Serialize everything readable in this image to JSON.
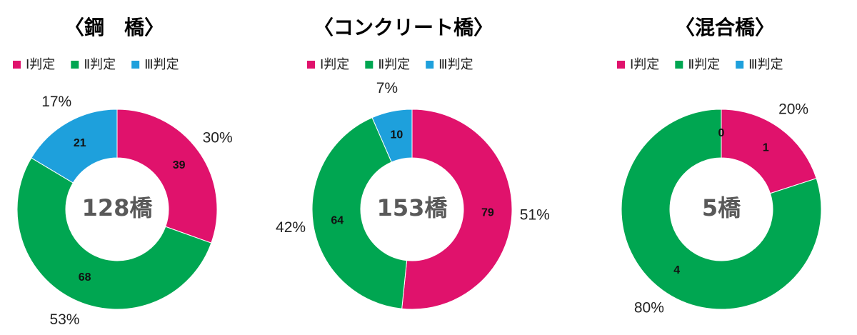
{
  "chart_data": [
    {
      "type": "donut",
      "title": "〈鋼　橋〉",
      "center_label": "128橋",
      "categories": [
        "Ⅰ判定",
        "Ⅱ判定",
        "Ⅲ判定"
      ],
      "colors": [
        "#e0126c",
        "#00a651",
        "#1ea0dc"
      ],
      "values": [
        39,
        68,
        21
      ],
      "percent_labels": [
        "30%",
        "53%",
        "17%"
      ]
    },
    {
      "type": "donut",
      "title": "〈コンクリート橋〉",
      "center_label": "153橋",
      "categories": [
        "Ⅰ判定",
        "Ⅱ判定",
        "Ⅲ判定"
      ],
      "colors": [
        "#e0126c",
        "#00a651",
        "#1ea0dc"
      ],
      "values": [
        79,
        64,
        10
      ],
      "percent_labels": [
        "51%",
        "42%",
        "7%"
      ]
    },
    {
      "type": "donut",
      "title": "〈混合橋〉",
      "center_label": "5橋",
      "categories": [
        "Ⅰ判定",
        "Ⅱ判定",
        "Ⅲ判定"
      ],
      "colors": [
        "#e0126c",
        "#00a651",
        "#1ea0dc"
      ],
      "values": [
        1,
        4,
        0
      ],
      "percent_labels": [
        "20%",
        "80%",
        null
      ]
    }
  ]
}
